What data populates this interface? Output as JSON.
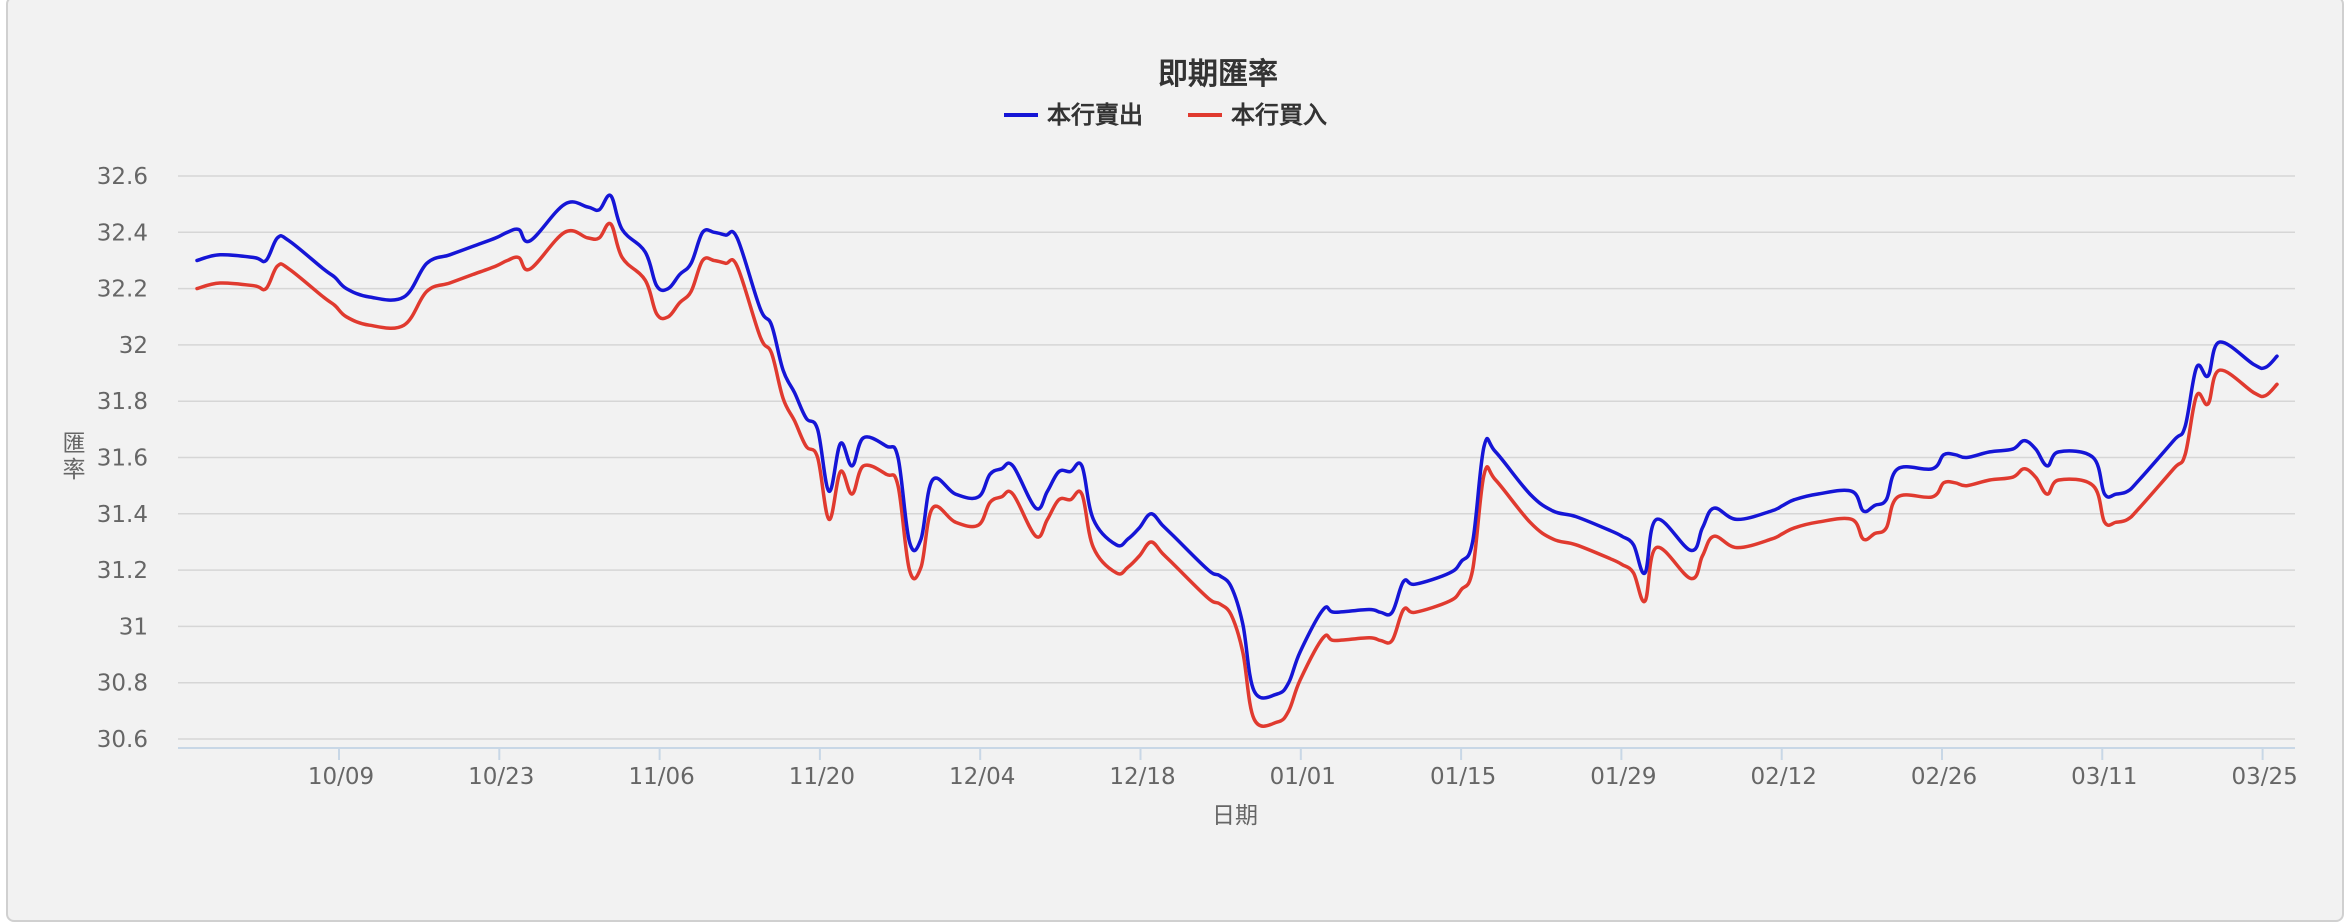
{
  "chart_data": {
    "type": "line",
    "title": "即期匯率",
    "xlabel": "日期",
    "ylabel": "匯率",
    "ylim": [
      30.6,
      32.6
    ],
    "y_ticks": [
      "32.6",
      "32.4",
      "32.2",
      "32",
      "31.8",
      "31.6",
      "31.4",
      "31.2",
      "31",
      "30.8",
      "30.6"
    ],
    "x_tick_labels": [
      "10/09",
      "10/23",
      "11/06",
      "11/20",
      "12/04",
      "12/18",
      "01/01",
      "01/15",
      "01/29",
      "02/12",
      "02/26",
      "03/11",
      "03/25"
    ],
    "grid": true,
    "legend": "top-center",
    "x": [
      "09/26",
      "09/28",
      "10/01",
      "10/02",
      "10/03",
      "10/04",
      "10/07",
      "10/08",
      "10/09",
      "10/11",
      "10/14",
      "10/16",
      "10/18",
      "10/20",
      "10/22",
      "10/23",
      "10/24",
      "10/25",
      "10/28",
      "10/30",
      "10/31",
      "11/01",
      "11/02",
      "11/04",
      "11/05",
      "11/06",
      "11/07",
      "11/08",
      "11/09",
      "11/10",
      "11/11",
      "11/12",
      "11/14",
      "11/15",
      "11/16",
      "11/17",
      "11/18",
      "11/19",
      "11/20",
      "11/21",
      "11/22",
      "11/23",
      "11/25",
      "11/26",
      "11/27",
      "11/28",
      "11/29",
      "12/01",
      "12/03",
      "12/04",
      "12/05",
      "12/06",
      "12/08",
      "12/09",
      "12/10",
      "12/11",
      "12/12",
      "12/13",
      "12/15",
      "12/16",
      "12/17",
      "12/18",
      "12/19",
      "12/20",
      "12/23",
      "12/24",
      "12/25",
      "12/26",
      "12/27",
      "12/29",
      "12/30",
      "12/31",
      "01/02",
      "01/03",
      "01/06",
      "01/07",
      "01/08",
      "01/09",
      "01/10",
      "01/13",
      "01/14",
      "01/15",
      "01/16",
      "01/17",
      "01/20",
      "01/22",
      "01/24",
      "01/27",
      "01/28",
      "01/29",
      "01/30",
      "01/31",
      "02/03",
      "02/04",
      "02/05",
      "02/07",
      "02/10",
      "02/11",
      "02/12",
      "02/14",
      "02/17",
      "02/18",
      "02/19",
      "02/20",
      "02/21",
      "02/24",
      "02/25",
      "02/26",
      "02/27",
      "03/01",
      "03/03",
      "03/04",
      "03/05",
      "03/06",
      "03/07",
      "03/10",
      "03/11",
      "03/12",
      "03/13",
      "03/14",
      "03/17",
      "03/18",
      "03/19",
      "03/20",
      "03/21",
      "03/24",
      "03/25",
      "03/26"
    ],
    "series": [
      {
        "name": "本行賣出",
        "color": "#1515d6",
        "values": [
          32.3,
          32.32,
          32.31,
          32.3,
          32.38,
          32.37,
          32.27,
          32.24,
          32.2,
          32.17,
          32.17,
          32.29,
          32.32,
          32.35,
          32.38,
          32.4,
          32.41,
          32.37,
          32.5,
          32.49,
          32.48,
          32.53,
          32.41,
          32.33,
          32.21,
          32.2,
          32.25,
          32.29,
          32.4,
          32.4,
          32.39,
          32.38,
          32.13,
          32.07,
          31.91,
          31.83,
          31.74,
          31.7,
          31.48,
          31.65,
          31.57,
          31.67,
          31.64,
          31.6,
          31.3,
          31.31,
          31.52,
          31.47,
          31.46,
          31.54,
          31.56,
          31.57,
          31.42,
          31.48,
          31.55,
          31.55,
          31.57,
          31.38,
          31.29,
          31.31,
          31.35,
          31.4,
          31.36,
          31.32,
          31.2,
          31.18,
          31.14,
          31.01,
          30.77,
          30.76,
          30.8,
          30.91,
          31.06,
          31.05,
          31.06,
          31.05,
          31.05,
          31.16,
          31.15,
          31.19,
          31.23,
          31.3,
          31.64,
          31.62,
          31.47,
          31.41,
          31.39,
          31.34,
          31.32,
          31.29,
          31.19,
          31.38,
          31.27,
          31.35,
          31.42,
          31.38,
          31.41,
          31.43,
          31.45,
          31.47,
          31.48,
          31.41,
          31.43,
          31.45,
          31.56,
          31.56,
          31.61,
          31.61,
          31.6,
          31.62,
          31.63,
          31.66,
          31.63,
          31.57,
          31.62,
          31.6,
          31.47,
          31.47,
          31.48,
          31.52,
          31.66,
          31.71,
          31.92,
          31.89,
          32.01,
          31.93,
          31.92,
          31.96
        ]
      },
      {
        "name": "本行買入",
        "color": "#e03a2f",
        "values": [
          32.2,
          32.22,
          32.21,
          32.2,
          32.28,
          32.27,
          32.17,
          32.14,
          32.1,
          32.07,
          32.07,
          32.19,
          32.22,
          32.25,
          32.28,
          32.3,
          32.31,
          32.27,
          32.4,
          32.38,
          32.38,
          32.43,
          32.31,
          32.23,
          32.11,
          32.1,
          32.15,
          32.19,
          32.3,
          32.3,
          32.29,
          32.28,
          32.03,
          31.97,
          31.81,
          31.73,
          31.64,
          31.6,
          31.38,
          31.55,
          31.47,
          31.57,
          31.54,
          31.5,
          31.2,
          31.21,
          31.42,
          31.37,
          31.36,
          31.44,
          31.46,
          31.47,
          31.32,
          31.38,
          31.45,
          31.45,
          31.47,
          31.28,
          31.19,
          31.21,
          31.25,
          31.3,
          31.26,
          31.22,
          31.1,
          31.08,
          31.04,
          30.91,
          30.67,
          30.66,
          30.7,
          30.81,
          30.96,
          30.95,
          30.96,
          30.95,
          30.95,
          31.06,
          31.05,
          31.09,
          31.13,
          31.2,
          31.54,
          31.52,
          31.37,
          31.31,
          31.29,
          31.24,
          31.22,
          31.19,
          31.09,
          31.28,
          31.17,
          31.25,
          31.32,
          31.28,
          31.31,
          31.33,
          31.35,
          31.37,
          31.38,
          31.31,
          31.33,
          31.35,
          31.46,
          31.46,
          31.51,
          31.51,
          31.5,
          31.52,
          31.53,
          31.56,
          31.53,
          31.47,
          31.52,
          31.5,
          31.37,
          31.37,
          31.38,
          31.42,
          31.56,
          31.61,
          31.82,
          31.79,
          31.91,
          31.83,
          31.82,
          31.86
        ]
      }
    ]
  }
}
